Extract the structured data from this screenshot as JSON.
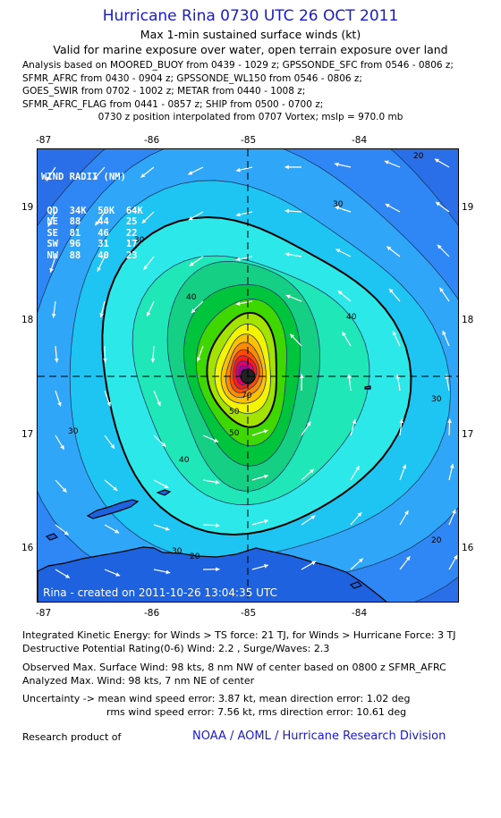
{
  "header": {
    "title": "Hurricane Rina 0730 UTC 26 OCT 2011",
    "subtitle1": "Max 1-min sustained surface winds (kt)",
    "subtitle2": "Valid for marine exposure over water, open terrain exposure over land"
  },
  "analysis_lines": [
    "Analysis based on MOORED_BUOY from 0439 - 1029 z; GPSSONDE_SFC from 0546 - 0806 z;",
    "SFMR_AFRC from 0430 - 0904 z; GPSSONDE_WL150 from 0546 - 0806 z;",
    "GOES_SWIR from 0702 - 1002 z; METAR from 0440 - 1008 z;",
    "SFMR_AFRC_FLAG from 0441 - 0857 z; SHIP from 0500 - 0700 z;"
  ],
  "position_line": "0730 z position interpolated from 0707 Vortex; mslp = 970.0 mb",
  "map": {
    "lon_ticks": [
      "-87",
      "-86",
      "-85",
      "-84"
    ],
    "lat_ticks": [
      "19",
      "18",
      "17",
      "16"
    ],
    "center": {
      "lon": -85.0,
      "lat": 17.5
    },
    "extent": {
      "lon_min": -87.0,
      "lon_max": -83.1,
      "lat_min": 15.58,
      "lat_max": 19.5
    },
    "contour_labels": [
      "30",
      "30",
      "30",
      "30",
      "30",
      "40",
      "40",
      "40",
      "50",
      "50",
      "70",
      "20",
      "20",
      "20"
    ],
    "contour_colors": [
      "#2f86f5",
      "#2fa6f8",
      "#1ec4f2",
      "#2de8e8",
      "#20e7b8",
      "#15cf85",
      "#00c43c",
      "#3ed700",
      "#a4e300",
      "#f4f400",
      "#ffc000",
      "#ff8c00",
      "#ff4a00",
      "#ff1a1a",
      "#e0006e",
      "#b10099",
      "#58007a"
    ],
    "radii_table": {
      "title": "WIND RADII (NM)",
      "header": [
        "QD",
        "34K",
        "50K",
        "64K"
      ],
      "rows": [
        [
          "NE",
          "88",
          "44",
          "25"
        ],
        [
          "SE",
          "81",
          "46",
          "22"
        ],
        [
          "SW",
          "96",
          "31",
          "17"
        ],
        [
          "NW",
          "88",
          "40",
          "23"
        ]
      ]
    },
    "created": "Rina - created on 2011-10-26 13:04:35 UTC"
  },
  "stats": {
    "ike": "Integrated Kinetic Energy:  for Winds > TS force: 21 TJ,  for Winds > Hurricane Force: 3 TJ",
    "dpr": "Destructive Potential Rating(0-6)  Wind: 2.2 , Surge/Waves: 2.3",
    "obs": "Observed Max. Surface Wind: 98 kts, 8 nm NW of center based on 0800 z SFMR_AFRC",
    "analyzed": "Analyzed Max. Wind: 98 kts, 7 nm NE of center",
    "unc1": "Uncertainty -> mean wind speed error: 3.87 kt,   mean direction error: 1.02 deg",
    "unc2": "rms wind speed error: 7.56 kt,   rms direction error: 10.61 deg"
  },
  "footer": {
    "research": "Research product of",
    "org": "NOAA / AOML / Hurricane Research Division"
  }
}
